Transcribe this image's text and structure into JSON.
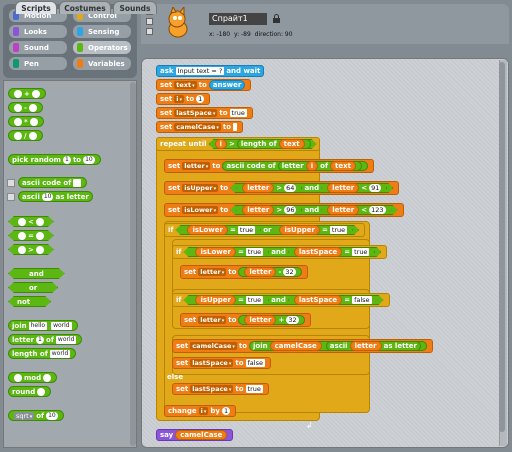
{
  "categories": [
    {
      "label": "Motion",
      "color": "#4a6cd4"
    },
    {
      "label": "Control",
      "color": "#e1a91a"
    },
    {
      "label": "Looks",
      "color": "#8a55d7"
    },
    {
      "label": "Sensing",
      "color": "#2ca5e2"
    },
    {
      "label": "Sound",
      "color": "#bb42c3"
    },
    {
      "label": "Operators",
      "color": "#5cb712"
    },
    {
      "label": "Pen",
      "color": "#0e9a6c"
    },
    {
      "label": "Variables",
      "color": "#ee7d16"
    }
  ],
  "selected_category": "Operators",
  "palette": {
    "ops": [
      "+",
      "-",
      "*",
      "/"
    ],
    "pick_random": {
      "label": "pick random",
      "from": "1",
      "to_label": "to",
      "to": "10"
    },
    "ascii_code": {
      "label": "ascii code of"
    },
    "ascii": {
      "label": "ascii",
      "value": "10",
      "suffix": "as letter"
    },
    "compare": [
      "<",
      "=",
      ">"
    ],
    "and": "and",
    "or": "or",
    "not": "not",
    "join": {
      "label": "join",
      "a": "hello",
      "b": "world"
    },
    "letter": {
      "label": "letter",
      "n": "1",
      "of": "of",
      "s": "world"
    },
    "length": {
      "label": "length of",
      "s": "world"
    },
    "mod": "mod",
    "round": "round",
    "sqrt": {
      "op": "sqrt",
      "of": "of",
      "value": "10"
    }
  },
  "sprite": {
    "name": "Спрайт1",
    "x_label": "x:",
    "x": "-180",
    "y_label": "y:",
    "y": "-89",
    "dir_label": "direction:",
    "direction": "90"
  },
  "tabs": [
    "Scripts",
    "Costumes",
    "Sounds"
  ],
  "script": {
    "ask": {
      "label": "ask",
      "text": "Input text = ?",
      "suffix": "and wait"
    },
    "set_text": {
      "set": "set",
      "var": "text",
      "to": "to",
      "val": "answer"
    },
    "set_i": {
      "set": "set",
      "var": "i",
      "to": "to",
      "val": "1"
    },
    "set_last": {
      "set": "set",
      "var": "lastSpace",
      "to": "to",
      "val": "true"
    },
    "set_camel": {
      "set": "set",
      "var": "camelCase",
      "to": "to",
      "val": ""
    },
    "repeat": {
      "label": "repeat until",
      "i": "i",
      "op": ">",
      "len": "length of",
      "var": "text"
    },
    "set_letter": {
      "set": "set",
      "var": "letter",
      "to": "to",
      "f": "ascii code of",
      "l": "letter",
      "i": "i",
      "of": "of",
      "t": "text"
    },
    "set_upper": {
      "set": "set",
      "var": "isUpper",
      "to": "to",
      "a": "letter",
      "gt": ">",
      "n1": "64",
      "and": "and",
      "b": "letter",
      "lt": "<",
      "n2": "91"
    },
    "set_lower": {
      "set": "set",
      "var": "isLower",
      "to": "to",
      "a": "letter",
      "gt": ">",
      "n1": "96",
      "and": "and",
      "b": "letter",
      "lt": "<",
      "n2": "123"
    },
    "if1": {
      "if": "if",
      "a": "isLower",
      "eq": "=",
      "v1": "true",
      "or": "or",
      "b": "isUpper",
      "v2": "true"
    },
    "if2": {
      "if": "if",
      "a": "isLower",
      "eq": "=",
      "v1": "true",
      "and": "and",
      "b": "lastSpace",
      "v2": "true"
    },
    "set_l1": {
      "set": "set",
      "var": "letter",
      "to": "to",
      "a": "letter",
      "op": "-",
      "n": "32"
    },
    "if3": {
      "if": "if",
      "a": "isUpper",
      "eq": "=",
      "v1": "true",
      "and": "and",
      "b": "lastSpace",
      "v2": "false"
    },
    "set_l2": {
      "set": "set",
      "var": "letter",
      "to": "to",
      "a": "letter",
      "op": "+",
      "n": "32"
    },
    "set_c2": {
      "set": "set",
      "var": "camelCase",
      "to": "to",
      "j": "join",
      "c": "camelCase",
      "as": "ascii",
      "l": "letter",
      "al": "as letter"
    },
    "set_ls1": {
      "set": "set",
      "var": "lastSpace",
      "to": "to",
      "val": "false"
    },
    "else": "else",
    "set_ls2": {
      "set": "set",
      "var": "lastSpace",
      "to": "to",
      "val": "true"
    },
    "change": {
      "label": "change",
      "var": "i",
      "by": "by",
      "val": "1"
    },
    "say": {
      "label": "say",
      "var": "camelCase"
    }
  }
}
